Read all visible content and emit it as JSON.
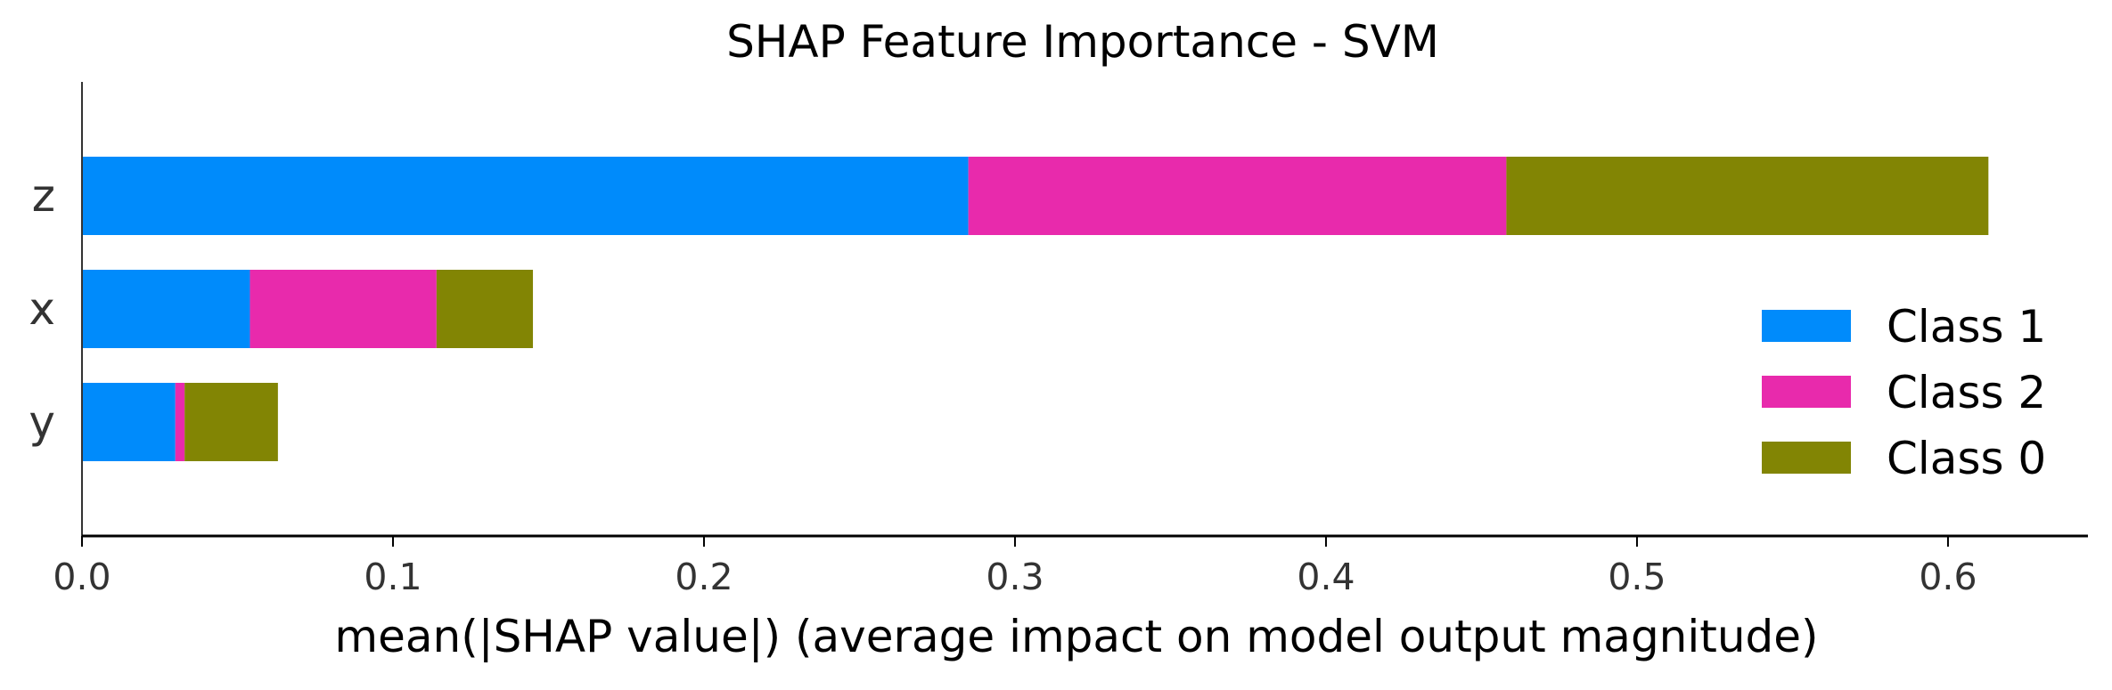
{
  "chart_data": {
    "type": "bar",
    "orientation": "horizontal",
    "stacked": true,
    "title": "SHAP Feature Importance - SVM",
    "xlabel": "mean(|SHAP value|) (average impact on model output magnitude)",
    "ylabel": "",
    "categories": [
      "z",
      "x",
      "y"
    ],
    "series": [
      {
        "name": "Class 1",
        "color": "#008bfb",
        "values": [
          0.285,
          0.054,
          0.03
        ]
      },
      {
        "name": "Class 2",
        "color": "#e82aac",
        "values": [
          0.173,
          0.06,
          0.003
        ]
      },
      {
        "name": "Class 0",
        "color": "#828504",
        "values": [
          0.155,
          0.031,
          0.03
        ]
      }
    ],
    "xlim": [
      0,
      0.645
    ],
    "xticks": [
      0.0,
      0.1,
      0.2,
      0.3,
      0.4,
      0.5,
      0.6
    ],
    "xtick_labels": [
      "0.0",
      "0.1",
      "0.2",
      "0.3",
      "0.4",
      "0.5",
      "0.6"
    ],
    "grid": false,
    "legend_position": "lower-right"
  }
}
